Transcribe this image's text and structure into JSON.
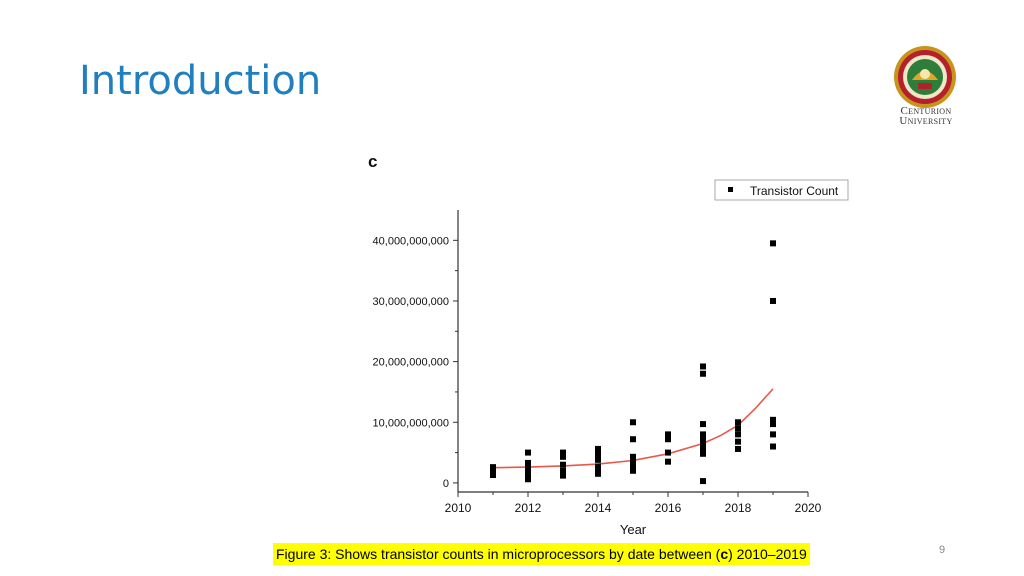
{
  "slide": {
    "title": "Introduction",
    "page_number": "9",
    "caption_pre": "Figure 3: Shows transistor counts in microprocessors by date between (",
    "caption_bold": "c",
    "caption_post": ") 2010–2019",
    "logo_line1": "Centurion",
    "logo_line2": "University"
  },
  "colors": {
    "title": "#1f7fc0",
    "points": "#000000",
    "trend": "#e8584a",
    "highlight": "#ffff00"
  },
  "chart_data": {
    "type": "scatter",
    "panel_label": "c",
    "title": "",
    "xlabel": "Year",
    "ylabel": "",
    "xlim": [
      2010,
      2020
    ],
    "ylim": [
      -1500000000,
      45000000000
    ],
    "x_ticks": [
      2010,
      2012,
      2014,
      2016,
      2018,
      2020
    ],
    "y_ticks": [
      {
        "value": 0,
        "label": "0"
      },
      {
        "value": 10000000000,
        "label": "10,000,000,000"
      },
      {
        "value": 20000000000,
        "label": "20,000,000,000"
      },
      {
        "value": 30000000000,
        "label": "30,000,000,000"
      },
      {
        "value": 40000000000,
        "label": "40,000,000,000"
      }
    ],
    "grid": false,
    "legend": {
      "position": "top-right",
      "entries": [
        "Transistor Count"
      ]
    },
    "series": [
      {
        "name": "Transistor Count",
        "points": [
          [
            2011,
            2600000000
          ],
          [
            2011,
            2100000000
          ],
          [
            2011,
            1700000000
          ],
          [
            2011,
            1300000000
          ],
          [
            2012,
            5000000000
          ],
          [
            2012,
            3300000000
          ],
          [
            2012,
            2600000000
          ],
          [
            2012,
            1800000000
          ],
          [
            2012,
            1200000000
          ],
          [
            2012,
            600000000
          ],
          [
            2013,
            5000000000
          ],
          [
            2013,
            4300000000
          ],
          [
            2013,
            3000000000
          ],
          [
            2013,
            2000000000
          ],
          [
            2013,
            1200000000
          ],
          [
            2014,
            5600000000
          ],
          [
            2014,
            4700000000
          ],
          [
            2014,
            3800000000
          ],
          [
            2014,
            2700000000
          ],
          [
            2014,
            2000000000
          ],
          [
            2014,
            1500000000
          ],
          [
            2015,
            10000000000
          ],
          [
            2015,
            7200000000
          ],
          [
            2015,
            4300000000
          ],
          [
            2015,
            3500000000
          ],
          [
            2015,
            2600000000
          ],
          [
            2015,
            2000000000
          ],
          [
            2016,
            8000000000
          ],
          [
            2016,
            7200000000
          ],
          [
            2016,
            5000000000
          ],
          [
            2016,
            3500000000
          ],
          [
            2017,
            19200000000
          ],
          [
            2017,
            18000000000
          ],
          [
            2017,
            9700000000
          ],
          [
            2017,
            8000000000
          ],
          [
            2017,
            7200000000
          ],
          [
            2017,
            6400000000
          ],
          [
            2017,
            5600000000
          ],
          [
            2017,
            4800000000
          ],
          [
            2017,
            300000000
          ],
          [
            2018,
            10000000000
          ],
          [
            2018,
            9000000000
          ],
          [
            2018,
            8000000000
          ],
          [
            2018,
            6800000000
          ],
          [
            2018,
            5600000000
          ],
          [
            2019,
            39500000000
          ],
          [
            2019,
            30000000000
          ],
          [
            2019,
            10400000000
          ],
          [
            2019,
            9700000000
          ],
          [
            2019,
            8000000000
          ],
          [
            2019,
            6000000000
          ]
        ]
      }
    ],
    "trendline": {
      "name": "fit",
      "points": [
        [
          2011,
          2500000000
        ],
        [
          2012,
          2600000000
        ],
        [
          2013,
          2800000000
        ],
        [
          2014,
          3100000000
        ],
        [
          2015,
          3700000000
        ],
        [
          2016,
          4800000000
        ],
        [
          2017,
          6500000000
        ],
        [
          2017.5,
          7800000000
        ],
        [
          2018,
          9500000000
        ],
        [
          2018.5,
          12300000000
        ],
        [
          2019,
          15500000000
        ]
      ]
    }
  }
}
